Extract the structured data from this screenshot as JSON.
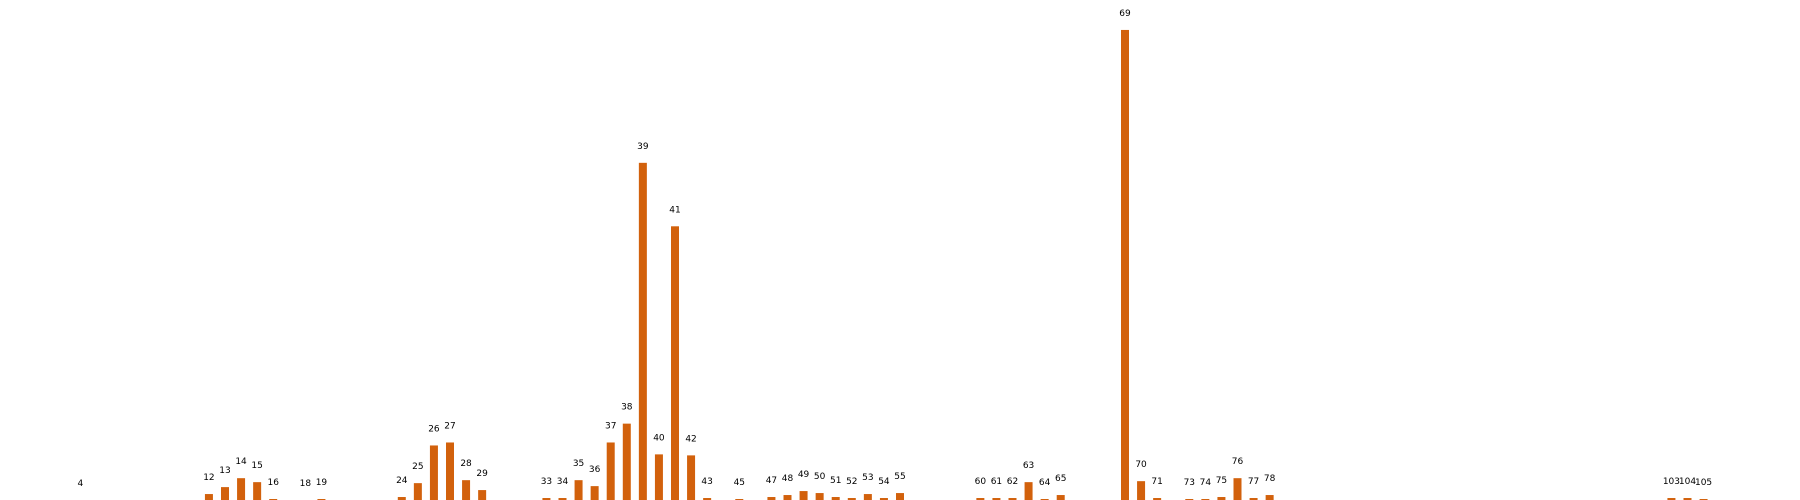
{
  "chart_data": {
    "type": "bar",
    "title": "",
    "xlabel": "",
    "ylabel": "",
    "ylim": [
      0,
      480
    ],
    "grid": false,
    "axes_visible": false,
    "bar_color": "#d2610c",
    "label_color": "#000000",
    "background": "#ffffff",
    "x_range": [
      -1,
      111
    ],
    "categories": [
      "4",
      "12",
      "13",
      "14",
      "15",
      "16",
      "18",
      "19",
      "24",
      "25",
      "26",
      "27",
      "28",
      "29",
      "33",
      "34",
      "35",
      "36",
      "37",
      "38",
      "39",
      "40",
      "41",
      "42",
      "43",
      "45",
      "47",
      "48",
      "49",
      "50",
      "51",
      "52",
      "53",
      "54",
      "55",
      "60",
      "61",
      "62",
      "63",
      "64",
      "65",
      "69",
      "70",
      "71",
      "73",
      "74",
      "75",
      "76",
      "77",
      "78",
      "103",
      "104",
      "105"
    ],
    "values": [
      0,
      6,
      13,
      22,
      18,
      1,
      0,
      1,
      3,
      17,
      55,
      58,
      20,
      10,
      2,
      2,
      20,
      14,
      58,
      77,
      340,
      46,
      276,
      45,
      2,
      1,
      3,
      5,
      9,
      7,
      3,
      2,
      6,
      2,
      7,
      2,
      2,
      2,
      18,
      1,
      5,
      474,
      19,
      2,
      1,
      1,
      3,
      22,
      2,
      5,
      2,
      2,
      1
    ],
    "data_labels": [
      "4",
      "12",
      "13",
      "14",
      "15",
      "16",
      "18",
      "19",
      "24",
      "25",
      "26",
      "27",
      "28",
      "29",
      "33",
      "34",
      "35",
      "36",
      "37",
      "38",
      "39",
      "40",
      "41",
      "42",
      "43",
      "45",
      "47",
      "48",
      "49",
      "50",
      "51",
      "52",
      "53",
      "54",
      "55",
      "60",
      "61",
      "62",
      "63",
      "64",
      "65",
      "69",
      "70",
      "71",
      "73",
      "74",
      "75",
      "76",
      "77",
      "78",
      "103",
      "104",
      "105"
    ]
  }
}
